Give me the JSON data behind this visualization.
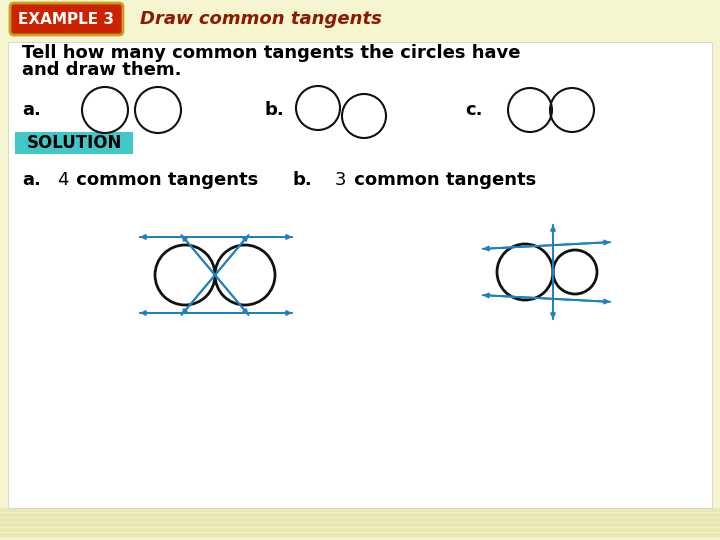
{
  "bg_color": "#f5f5d0",
  "stripe_color": "#e8e8b0",
  "body_bg": "#ffffff",
  "example_box_color": "#cc2200",
  "example_box_border": "#c8a020",
  "example_box_text": "EXAMPLE 3",
  "header_title": "Draw common tangents",
  "header_title_color": "#8b1a00",
  "problem_text_line1": "Tell how many common tangents the circles have",
  "problem_text_line2": "and draw them.",
  "text_color": "#000000",
  "label_a": "a.",
  "label_b": "b.",
  "label_c": "c.",
  "solution_bg": "#40c8c8",
  "solution_text": "SOLUTION",
  "solution_text_color": "#000000",
  "answer_a_num": "4",
  "answer_a_text": " common tangents",
  "answer_b_label": "b.",
  "answer_b_num": "3",
  "answer_b_text": " common tangents",
  "circle_color": "#111111",
  "tangent_color": "#2080c0",
  "font_size_example": 11,
  "font_size_title": 13,
  "font_size_body": 13,
  "font_size_solution": 12,
  "font_size_answer": 13
}
